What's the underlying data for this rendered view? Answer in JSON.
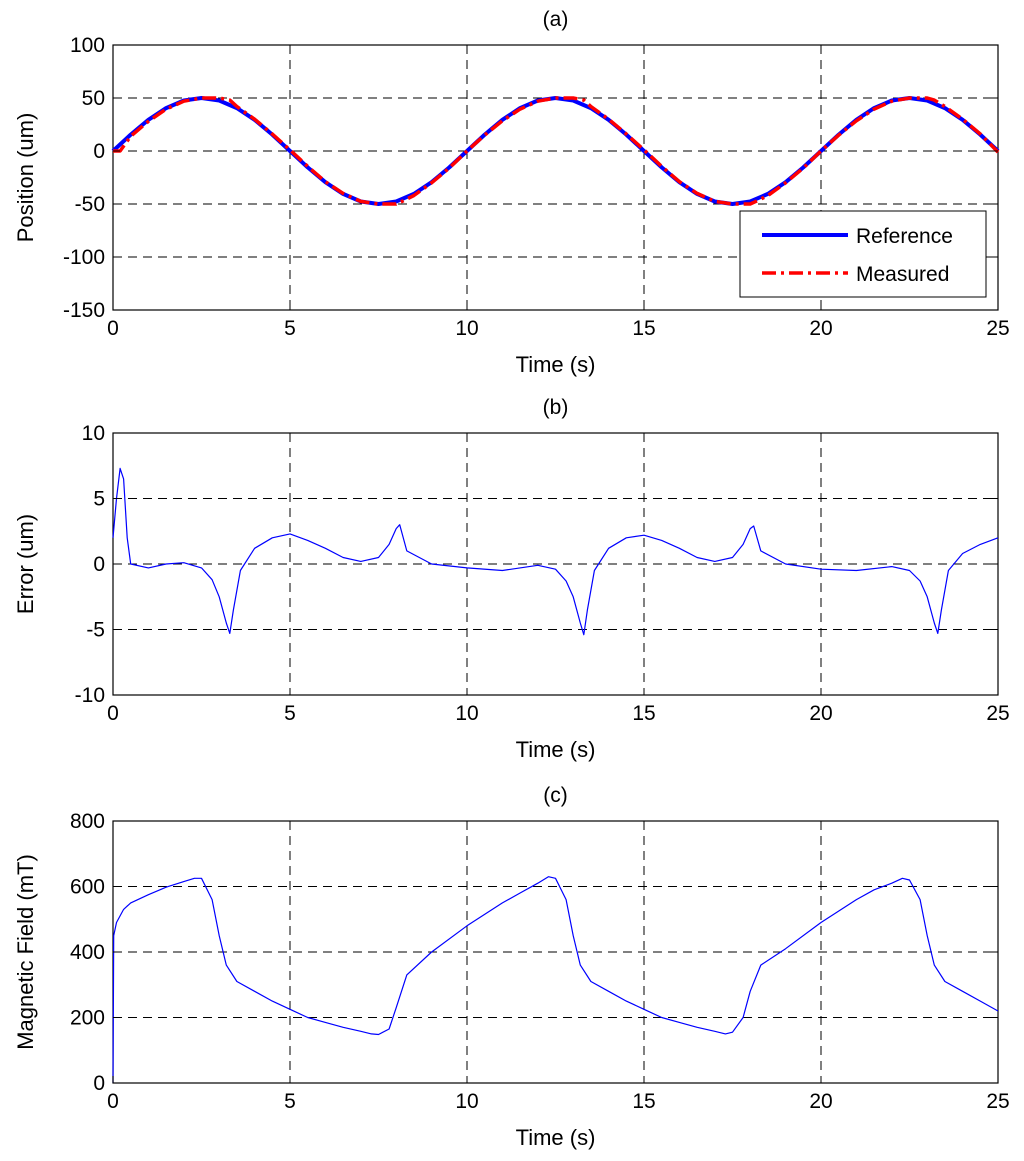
{
  "chart_data": [
    {
      "type": "line",
      "title": "(a)",
      "xlabel": "Time (s)",
      "ylabel": "Position (um)",
      "xlim": [
        0,
        25
      ],
      "ylim": [
        -150,
        100
      ],
      "xticks": [
        0,
        5,
        10,
        15,
        20,
        25
      ],
      "yticks": [
        -150,
        -100,
        -50,
        0,
        50,
        100
      ],
      "grid": true,
      "legend_position": "bottom-right",
      "series": [
        {
          "name": "Reference",
          "color": "#0000ff",
          "style": "solid",
          "x": [
            0,
            0.5,
            1,
            1.5,
            2,
            2.5,
            3,
            3.5,
            4,
            4.5,
            5,
            5.5,
            6,
            6.5,
            7,
            7.5,
            8,
            8.5,
            9,
            9.5,
            10,
            10.5,
            11,
            11.5,
            12,
            12.5,
            13,
            13.5,
            14,
            14.5,
            15,
            15.5,
            16,
            16.5,
            17,
            17.5,
            18,
            18.5,
            19,
            19.5,
            20,
            20.5,
            21,
            21.5,
            22,
            22.5,
            23,
            23.5,
            24,
            24.5,
            25
          ],
          "y": [
            0,
            15.5,
            29.4,
            40.5,
            47.6,
            50,
            47.6,
            40.5,
            29.4,
            15.5,
            0,
            -15.5,
            -29.4,
            -40.5,
            -47.6,
            -50,
            -47.6,
            -40.5,
            -29.4,
            -15.5,
            0,
            15.5,
            29.4,
            40.5,
            47.6,
            50,
            47.6,
            40.5,
            29.4,
            15.5,
            0,
            -15.5,
            -29.4,
            -40.5,
            -47.6,
            -50,
            -47.6,
            -40.5,
            -29.4,
            -15.5,
            0,
            15.5,
            29.4,
            40.5,
            47.6,
            50,
            47.6,
            40.5,
            29.4,
            15.5,
            0
          ]
        },
        {
          "name": "Measured",
          "color": "#ff0000",
          "style": "dashdot",
          "x": [
            0,
            0.2,
            0.5,
            1,
            1.5,
            2,
            2.5,
            3,
            3.3,
            3.5,
            4,
            4.5,
            5,
            5.5,
            6,
            6.5,
            7,
            7.5,
            8,
            8.2,
            8.5,
            9,
            9.5,
            10,
            10.5,
            11,
            11.5,
            12,
            12.5,
            13,
            13.3,
            13.5,
            14,
            14.5,
            15,
            15.5,
            16,
            16.5,
            17,
            17.5,
            18,
            18.2,
            18.5,
            19,
            19.5,
            20,
            20.5,
            21,
            21.5,
            22,
            22.5,
            23,
            23.2,
            23.5,
            24,
            24.5,
            25
          ],
          "y": [
            0,
            0,
            14,
            28,
            39.5,
            47,
            50,
            50,
            48,
            42,
            30,
            16,
            1,
            -14.5,
            -29,
            -40,
            -47.5,
            -50,
            -50,
            -47,
            -42,
            -30,
            -16,
            0,
            15,
            28.5,
            39.5,
            47,
            50,
            50,
            48,
            42,
            30,
            16,
            1,
            -14.5,
            -29,
            -40,
            -47.5,
            -50,
            -50,
            -47,
            -42,
            -30,
            -16,
            0,
            15,
            28.5,
            39.5,
            47,
            50,
            50,
            48,
            42,
            30,
            16,
            -1
          ]
        }
      ]
    },
    {
      "type": "line",
      "title": "(b)",
      "xlabel": "Time (s)",
      "ylabel": "Error (um)",
      "xlim": [
        0,
        25
      ],
      "ylim": [
        -10,
        10
      ],
      "xticks": [
        0,
        5,
        10,
        15,
        20,
        25
      ],
      "yticks": [
        -10,
        -5,
        0,
        5,
        10
      ],
      "grid": true,
      "series": [
        {
          "color": "#0000ff",
          "style": "solid",
          "x": [
            0,
            0.1,
            0.2,
            0.3,
            0.4,
            0.5,
            1,
            1.5,
            2,
            2.5,
            2.8,
            3,
            3.2,
            3.3,
            3.4,
            3.6,
            4,
            4.5,
            5,
            5.5,
            6,
            6.5,
            7,
            7.5,
            7.8,
            8,
            8.1,
            8.3,
            9,
            10,
            11,
            12,
            12.5,
            12.8,
            13,
            13.2,
            13.3,
            13.4,
            13.6,
            14,
            14.5,
            15,
            15.5,
            16,
            16.5,
            17,
            17.5,
            17.8,
            18,
            18.1,
            18.3,
            19,
            20,
            21,
            22,
            22.5,
            22.8,
            23,
            23.2,
            23.3,
            23.4,
            23.6,
            24,
            24.5,
            25
          ],
          "y": [
            2,
            5,
            7.3,
            6.5,
            2,
            0,
            -0.3,
            0,
            0.1,
            -0.3,
            -1.2,
            -2.5,
            -4.5,
            -5.3,
            -3.5,
            -0.5,
            1.2,
            2,
            2.3,
            1.8,
            1.2,
            0.5,
            0.2,
            0.5,
            1.5,
            2.7,
            3,
            1,
            0,
            -0.3,
            -0.5,
            -0.1,
            -0.4,
            -1.3,
            -2.5,
            -4.5,
            -5.4,
            -3.5,
            -0.5,
            1.2,
            2,
            2.2,
            1.8,
            1.2,
            0.5,
            0.2,
            0.5,
            1.5,
            2.7,
            2.9,
            1,
            0,
            -0.4,
            -0.5,
            -0.2,
            -0.5,
            -1.3,
            -2.5,
            -4.5,
            -5.3,
            -3.5,
            -0.5,
            0.8,
            1.5,
            2
          ]
        }
      ]
    },
    {
      "type": "line",
      "title": "(c)",
      "xlabel": "Time (s)",
      "ylabel": "Magnetic Field (mT)",
      "xlim": [
        0,
        25
      ],
      "ylim": [
        0,
        800
      ],
      "xticks": [
        0,
        5,
        10,
        15,
        20,
        25
      ],
      "yticks": [
        0,
        200,
        400,
        600,
        800
      ],
      "grid": true,
      "series": [
        {
          "color": "#0000ff",
          "style": "solid",
          "x": [
            0,
            0.02,
            0.1,
            0.3,
            0.5,
            1,
            1.5,
            2,
            2.3,
            2.5,
            2.8,
            3,
            3.2,
            3.5,
            4,
            4.5,
            5,
            5.5,
            6,
            6.5,
            7,
            7.3,
            7.5,
            7.8,
            8,
            8.3,
            9,
            10,
            11,
            11.5,
            12,
            12.3,
            12.5,
            12.8,
            13,
            13.2,
            13.5,
            14,
            14.5,
            15,
            15.5,
            16,
            16.5,
            17,
            17.3,
            17.5,
            17.8,
            18,
            18.3,
            19,
            20,
            21,
            21.5,
            22,
            22.3,
            22.5,
            22.8,
            23,
            23.2,
            23.5,
            24,
            24.5,
            25
          ],
          "y": [
            0,
            450,
            490,
            530,
            550,
            575,
            598,
            615,
            625,
            625,
            560,
            450,
            360,
            310,
            280,
            250,
            225,
            200,
            185,
            170,
            158,
            150,
            148,
            165,
            230,
            330,
            400,
            480,
            550,
            580,
            610,
            630,
            625,
            560,
            450,
            360,
            310,
            280,
            250,
            225,
            200,
            185,
            170,
            158,
            150,
            155,
            200,
            280,
            360,
            410,
            490,
            560,
            590,
            610,
            625,
            620,
            560,
            450,
            360,
            310,
            280,
            250,
            220
          ]
        }
      ]
    }
  ]
}
